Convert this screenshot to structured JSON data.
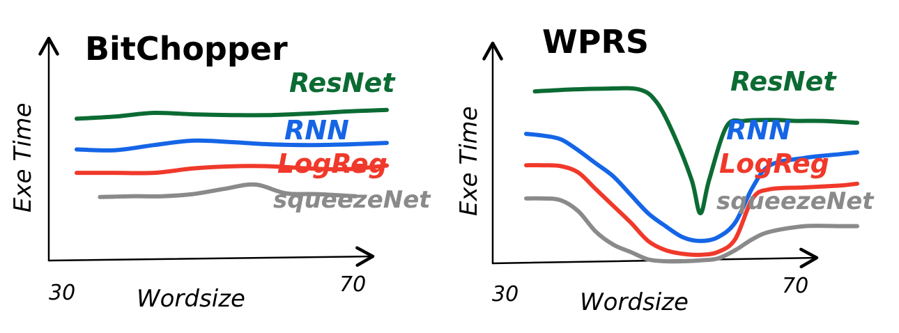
{
  "chart_data": [
    {
      "type": "line",
      "title": "BitChopper",
      "xlabel": "Wordsize",
      "ylabel": "Exe Time",
      "x_tick_labels": [
        "30",
        "70"
      ],
      "xlim": [
        30,
        70
      ],
      "ylim": [
        0,
        10
      ],
      "grid": false,
      "series": [
        {
          "name": "ResNet",
          "color": "#0b6b33",
          "x": [
            30,
            35,
            40,
            45,
            50,
            55,
            60,
            65,
            70
          ],
          "y": [
            7.6,
            7.75,
            8.0,
            7.9,
            7.85,
            7.85,
            7.95,
            8.1,
            8.2
          ]
        },
        {
          "name": "RNN",
          "color": "#1565e6",
          "x": [
            30,
            35,
            40,
            45,
            50,
            55,
            60,
            65,
            70
          ],
          "y": [
            5.5,
            5.45,
            5.8,
            6.1,
            6.0,
            5.85,
            5.8,
            5.85,
            5.95
          ]
        },
        {
          "name": "LogReg",
          "color": "#f0392b",
          "x": [
            30,
            35,
            40,
            45,
            50,
            55,
            60,
            65,
            70
          ],
          "y": [
            3.9,
            3.9,
            3.9,
            4.2,
            4.35,
            4.35,
            4.2,
            4.15,
            4.4
          ]
        },
        {
          "name": "squeezeNet",
          "color": "#8a8a8a",
          "x": [
            33,
            37,
            41,
            45,
            49,
            53,
            57,
            61,
            66
          ],
          "y": [
            2.25,
            2.3,
            2.3,
            2.45,
            2.8,
            3.1,
            2.5,
            2.45,
            2.3
          ]
        }
      ]
    },
    {
      "type": "line",
      "title": "WPRS",
      "xlabel": "Wordsize",
      "ylabel": "Exe Time",
      "x_tick_labels": [
        "30",
        "70"
      ],
      "xlim": [
        30,
        70
      ],
      "ylim": [
        0,
        10
      ],
      "grid": false,
      "series": [
        {
          "name": "ResNet",
          "color": "#0b6b33",
          "x": [
            33,
            37,
            41,
            45,
            47,
            49,
            51,
            52,
            53,
            55,
            57,
            59,
            61,
            63,
            66,
            70
          ],
          "y": [
            9.2,
            9.3,
            9.35,
            9.3,
            8.6,
            6.8,
            4.4,
            2.6,
            4.4,
            7.3,
            7.6,
            7.65,
            7.65,
            7.6,
            7.6,
            7.5
          ]
        },
        {
          "name": "RNN",
          "color": "#1565e6",
          "x": [
            32,
            34,
            36,
            38,
            40,
            42,
            44,
            46,
            48,
            50,
            52,
            54,
            56,
            58,
            60,
            64,
            68,
            70
          ],
          "y": [
            6.9,
            6.8,
            6.6,
            6.0,
            5.3,
            4.6,
            3.6,
            2.6,
            1.9,
            1.3,
            1.1,
            1.3,
            2.1,
            4.0,
            5.2,
            5.6,
            5.8,
            5.9
          ]
        },
        {
          "name": "LogReg",
          "color": "#f0392b",
          "x": [
            32,
            34,
            36,
            38,
            40,
            42,
            44,
            46,
            48,
            50,
            52,
            54,
            56,
            58,
            60,
            64,
            68,
            70
          ],
          "y": [
            5.2,
            5.2,
            5.15,
            4.8,
            3.9,
            3.0,
            2.1,
            1.1,
            0.6,
            0.4,
            0.35,
            0.5,
            1.2,
            3.4,
            3.9,
            4.0,
            4.1,
            4.2
          ]
        },
        {
          "name": "squeezeNet",
          "color": "#8a8a8a",
          "x": [
            32,
            34,
            36,
            38,
            40,
            42,
            44,
            46,
            48,
            50,
            52,
            54,
            56,
            58,
            60,
            64,
            68,
            70
          ],
          "y": [
            3.4,
            3.4,
            3.3,
            2.7,
            1.6,
            0.9,
            0.5,
            0.1,
            0.0,
            0.0,
            0.05,
            0.15,
            0.6,
            1.2,
            1.6,
            1.9,
            1.9,
            1.9
          ]
        }
      ]
    }
  ]
}
